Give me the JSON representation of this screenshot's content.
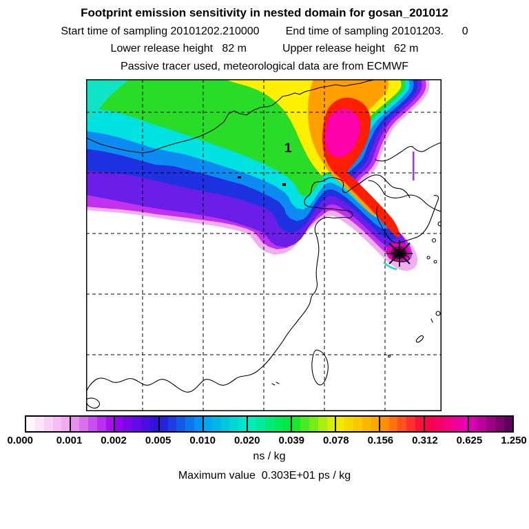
{
  "header": {
    "title": "Footprint emission sensitivity in nested domain for gosan_201012",
    "sampling_start": "Start time of sampling 20101202.210000",
    "sampling_end": "End time of sampling 20101203.      0",
    "lower_release": "Lower release height   82 m",
    "upper_release": "Upper release height   62 m",
    "tracer_line": "Passive tracer used, meteorological data are from ECMWF"
  },
  "map": {
    "nest_label": "1",
    "receptor_marker": "asterisk-star at Gosan, Jeju"
  },
  "colorbar": {
    "tick_labels": [
      "0.000",
      "0.001",
      "0.002",
      "0.005",
      "0.010",
      "0.020",
      "0.039",
      "0.078",
      "0.156",
      "0.312",
      "0.625",
      "1.250"
    ],
    "unit": "ns / kg",
    "cells_per_segment": 5,
    "anchor_colors": [
      "#FFFFFF",
      "#F0A0EE",
      "#A000F0",
      "#2814DC",
      "#00A0F5",
      "#00EEC8",
      "#00E830",
      "#F0F000",
      "#FFA000",
      "#FF0040",
      "#E800BE",
      "#500050"
    ]
  },
  "footer": {
    "max_value_line": "Maximum value  0.303E+01 ps / kg"
  },
  "chart_data": {
    "type": "heatmap",
    "subtype": "geographic-footprint-contour-map",
    "title": "Footprint emission sensitivity in nested domain for gosan_201012",
    "variable": "footprint emission sensitivity",
    "unit": "ns / kg",
    "levels": [
      0.0,
      0.001,
      0.002,
      0.005,
      0.01,
      0.02,
      0.039,
      0.078,
      0.156,
      0.312,
      0.625,
      1.25
    ],
    "level_colors": [
      "#FFFFFF",
      "#F0A0EE",
      "#A000F0",
      "#2814DC",
      "#00A0F5",
      "#00EEC8",
      "#00E830",
      "#F0F000",
      "#FFA000",
      "#FF0040",
      "#E800BE",
      "#500050"
    ],
    "max_value": "0.303E+01 ps / kg",
    "receptor_site": "gosan",
    "period": "201012",
    "sampling_start": "20101202.210000",
    "sampling_end": "20101203. 0",
    "lower_release_height_m": 82,
    "upper_release_height_m": 62,
    "tracer": "Passive tracer",
    "met_data_source": "ECMWF",
    "nest_domain_label": "1",
    "region": "East Asia (China, Mongolia, Korea, Japan, Taiwan)",
    "plume_description": "High sensitivity (red/magenta) band from receptor at Gosan/Jeju extending NW over Bohai and NE China, broad yellow-green plume over Mongolia/northern China, blue-purple southern flank",
    "legend_position": "bottom",
    "grid": "dashed graticule, 5 vertical x 5 horizontal lines"
  }
}
